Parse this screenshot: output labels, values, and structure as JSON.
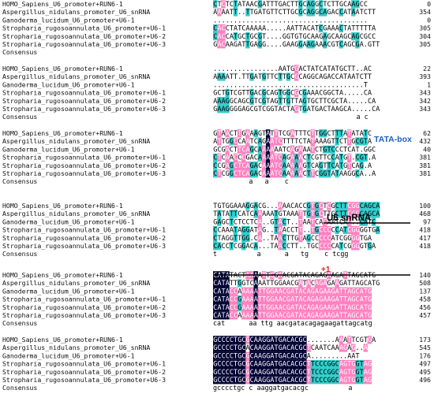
{
  "blocks": [
    {
      "rows": [
        {
          "name": "HOMO_Sapiens_U6_promoter+RUN6-1",
          "seq": "CTCTCTATAACGATTTGACTTGCAGGCTCTTGCAAGCC",
          "end": "0"
        },
        {
          "name": "Aspergillus_nidulans_promoter_U6_snRNA",
          "seq": "AAAATT..TTGATGTTCTTGCGCAGGCAGACCATAATCTT",
          "end": "354"
        },
        {
          "name": "Ganoderma_lucidum_U6_promoter+U6-1",
          "seq": "......................................",
          "end": "0"
        },
        {
          "name": "Stropharia_rugosoannulata_U6_promoter+U6-1",
          "seq": "CACCTATCAAAAA.....AATTACATCGAAACTATTTTTA",
          "end": "305"
        },
        {
          "name": "Stropharia_rugosoannulata_U6_promoter+U6-2",
          "seq": "CACCATGCTGCGT....GGTGTGCAAGAGCAAGCAGCGCC",
          "end": "304"
        },
        {
          "name": "Stropharia_rugosoannulata_U6_promoter+U6-3",
          "seq": "GACAAGATTGAGG....GAAGGAAGAAACGTCAGCGA.GTT",
          "end": "305"
        }
      ],
      "consensus": ""
    },
    {
      "rows": [
        {
          "name": "HOMO_Sapiens_U6_promoter+RUN6-1",
          "seq": "................AATGGACTATCATATGCTT..AC",
          "end": "22"
        },
        {
          "name": "Aspergillus_nidulans_promoter_U6_snRNA",
          "seq": "AAAATT.TTGATGTTCTTGCGCAGGCAGACCATAATCTT",
          "end": "393"
        },
        {
          "name": "Ganoderma_lucidum_U6_promoter+U6-1",
          "seq": ".....................................T",
          "end": "1"
        },
        {
          "name": "Stropharia_rugosoannulata_U6_promoter+U6-1",
          "seq": "GCTGTCGTTGACGCAGTGGCGCGAAACGGCTA.....CA",
          "end": "343"
        },
        {
          "name": "Stropharia_rugosoannulata_U6_promoter+U6-2",
          "seq": "AAAGGCAGCGTCGTAGTTGTTAGTGCTTCGCTA.....CA",
          "end": "342"
        },
        {
          "name": "Stropharia_rugosoannulata_U6_promoter+U6-3",
          "seq": "GAAGGGGAGCGTCGGTACTAGTGATGACTAAGCA.....CA",
          "end": "343"
        }
      ],
      "consensus": "                                    a c"
    },
    {
      "rows": [
        {
          "name": "HOMO_Sapiens_U6_promoter+RUN6-1",
          "seq": "GTAACTTGAAAGTATTTCGATTTCTTGGCTTTATATATC",
          "end": "62"
        },
        {
          "name": "Aspergillus_nidulans_promoter_U6_snRNA",
          "seq": "ATTGGCCAATCAGAATCTTTTCTATAAAGTTCTTGCGTA",
          "end": "432"
        },
        {
          "name": "Ganoderma_lucidum_U6_promoter+U6-1",
          "seq": "GCGACTTCAGCAAAAAATCAGAAATCTGTCCCTCAT.GGC",
          "end": "40"
        },
        {
          "name": "Stropharia_rugosoannulata_U6_promoter+U6-1",
          "seq": "CTCAACCCGACAAAATCAGAAACTCGTTCCATGT.CGT.A",
          "end": "381"
        },
        {
          "name": "Stropharia_rugosoannulata_U6_promoter+U6-2",
          "seq": "CCGAGCTCAGACAAATCAAAAAGTCAGTTCATGTCAG.A",
          "end": "381"
        },
        {
          "name": "Stropharia_rugosoannulata_U6_promoter+U6-3",
          "seq": "CTCGGCTCAGACAAATCAAAAACTTCGGTATAAGGCA..A",
          "end": "381"
        }
      ],
      "consensus": "         a   a    c"
    },
    {
      "rows": [
        {
          "name": "HOMO_Sapiens_U6_promoter+RUN6-1",
          "seq": "TGTGGAAAGGACG...AAACACCGTGCTCGCTTCGGCAGCA",
          "end": "100"
        },
        {
          "name": "Aspergillus_nidulans_promoter_U6_snRNA",
          "seq": "TATATTCATCAAAAATGTAAATTGTGCTTGCTTCGGCAGCA",
          "end": "468"
        },
        {
          "name": "Ganoderma_lucidum_U6_promoter+U6-1",
          "seq": "GAGCTCTCCTCA..GTACT..TAATCACAATCAC..CATC",
          "end": "97"
        },
        {
          "name": "Stropharia_rugosoannulata_U6_promoter+U6-1",
          "seq": "CCAAATAGGATAG..TAACCTT..TGCCCCCATCGGGGTGA",
          "end": "418"
        },
        {
          "name": "Stropharia_rugosoannulata_U6_promoter+U6-2",
          "seq": "CTAGGTTGG.CA..TAACTTGTAGCCCCCATCGGGGTGA",
          "end": "417"
        },
        {
          "name": "Stropharia_rugosoannulata_U6_promoter+U6-3",
          "seq": "CACCTCGGACA...TAACCTT..TGCCCCCATCGGGGTGA",
          "end": "418"
        }
      ],
      "consensus": "t          a      a   tg    c tcgg"
    },
    {
      "rows": [
        {
          "name": "HOMO_Sapiens_U6_promoter+RUN6-1",
          "seq": "CATATACTAAAATTGGAACGATACAGAGAAGATTAGCATG",
          "end": "140"
        },
        {
          "name": "Aspergillus_nidulans_promoter_U6_snRNA",
          "seq": "CATATTGGTCAAATTGGAACGATACAGAGAAGATTAGCATG",
          "end": "508"
        },
        {
          "name": "Ganoderma_lucidum_U6_promoter+U6-1",
          "seq": "CATACCAAAAATTGGAACGATACAGAGAAGATTAGCATG",
          "end": "137"
        },
        {
          "name": "Stropharia_rugosoannulata_U6_promoter+U6-1",
          "seq": "CATACCGAAAATTGGAACGATACAGAGAAGATTAGCATG",
          "end": "458"
        },
        {
          "name": "Stropharia_rugosoannulata_U6_promoter+U6-2",
          "seq": "CATACCGAAAATTGGAACGATACAGAGAAGATTAGCATG",
          "end": "456"
        },
        {
          "name": "Stropharia_rugosoannulata_U6_promoter+U6-3",
          "seq": "CATACCAAAAATTGGAACGATACAGAGAAGATTAGCATG",
          "end": "457"
        }
      ],
      "consensus": "cat      aa ttg aacgatacagagaagattagcatg"
    },
    {
      "rows": [
        {
          "name": "HOMO_Sapiens_U6_promoter+RUN6-1",
          "seq": "GCCCCTGCGCAAGGATGACACGC.......AAATTCGTGA",
          "end": "173"
        },
        {
          "name": "Aspergillus_nidulans_promoter_U6_snRNA",
          "seq": "GCCCCTGCACAAGGATGACACGCTCAATCAAAGAG..A",
          "end": "545"
        },
        {
          "name": "Ganoderma_lucidum_U6_promoter+U6-1",
          "seq": "GCCCCTGCGCAAGGATGACACGCA.........AAT",
          "end": "176"
        },
        {
          "name": "Stropharia_rugosoannulata_U6_promoter+U6-1",
          "seq": "GCCCCTGCGCAAGGATGACACGCTTCCCGGCAGTGGTAG",
          "end": "497"
        },
        {
          "name": "Stropharia_rugosoannulata_U6_promoter+U6-2",
          "seq": "GCCCCTGCGCAAGGATGACACGCTTCCCGGCAGTGGTAG",
          "end": "495"
        },
        {
          "name": "Stropharia_rugosoannulata_U6_promoter+U6-3",
          "seq": "GCCCCTGCGCAAGGATGACACGCTTCCCGGCAGTGGTAG",
          "end": "496"
        }
      ],
      "consensus": "gcccctgc c aaggatgacacgc          a"
    }
  ],
  "consensus_label": "Consensus",
  "annotations": {
    "tata_box": "TATA-box",
    "u6_snrna": "U6 snRNA",
    "tss": "+1"
  },
  "colors": {
    "identical": "#000033",
    "high": "#ff80c0",
    "medium": "#33cccc",
    "tata": "#1f5fbf",
    "tss": "#e0201c"
  }
}
